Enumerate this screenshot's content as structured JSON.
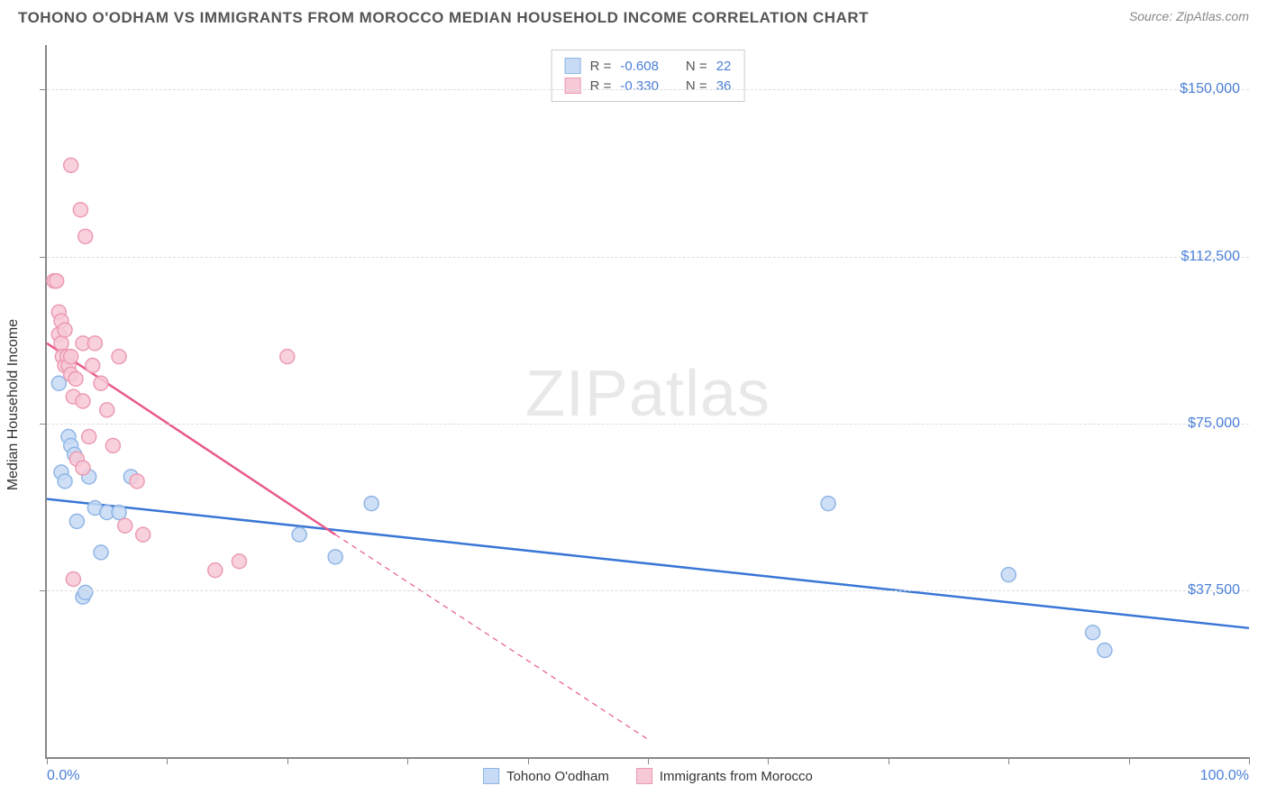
{
  "title": "TOHONO O'ODHAM VS IMMIGRANTS FROM MOROCCO MEDIAN HOUSEHOLD INCOME CORRELATION CHART",
  "source": "Source: ZipAtlas.com",
  "watermark_a": "ZIP",
  "watermark_b": "atlas",
  "y_axis_label": "Median Household Income",
  "x_min_label": "0.0%",
  "x_max_label": "100.0%",
  "chart": {
    "type": "scatter",
    "xlim": [
      0,
      100
    ],
    "ylim": [
      0,
      160000
    ],
    "y_ticks": [
      37500,
      75000,
      112500,
      150000
    ],
    "y_tick_labels": [
      "$37,500",
      "$75,000",
      "$112,500",
      "$150,000"
    ],
    "x_ticks": [
      0,
      10,
      20,
      30,
      40,
      50,
      60,
      70,
      80,
      90,
      100
    ],
    "grid_color": "#dddddd",
    "background_color": "#ffffff",
    "marker_radius": 8,
    "marker_stroke_width": 1.5,
    "line_width": 2.5
  },
  "series": [
    {
      "name": "Tohono O'odham",
      "color_fill": "#c7dbf5",
      "color_stroke": "#8fb5e5",
      "line_color": "#3a76d6",
      "R": "-0.608",
      "N": "22",
      "points": [
        [
          1.0,
          84000
        ],
        [
          1.2,
          64000
        ],
        [
          1.5,
          62000
        ],
        [
          1.8,
          72000
        ],
        [
          2.0,
          70000
        ],
        [
          2.3,
          68000
        ],
        [
          2.5,
          53000
        ],
        [
          3.0,
          36000
        ],
        [
          3.2,
          37000
        ],
        [
          3.5,
          63000
        ],
        [
          4.0,
          56000
        ],
        [
          4.5,
          46000
        ],
        [
          5.0,
          55000
        ],
        [
          6.0,
          55000
        ],
        [
          7.0,
          63000
        ],
        [
          21.0,
          50000
        ],
        [
          24.0,
          45000
        ],
        [
          27.0,
          57000
        ],
        [
          65.0,
          57000
        ],
        [
          80.0,
          41000
        ],
        [
          87.0,
          28000
        ],
        [
          88.0,
          24000
        ]
      ],
      "regression": {
        "x1": 0,
        "y1": 58000,
        "x2": 100,
        "y2": 29000,
        "dash": false,
        "extend_dash": false
      }
    },
    {
      "name": "Immigrants from Morocco",
      "color_fill": "#f7c9d6",
      "color_stroke": "#ec9ab2",
      "line_color": "#e85a8a",
      "R": "-0.330",
      "N": "36",
      "points": [
        [
          0.6,
          107000
        ],
        [
          0.8,
          107000
        ],
        [
          1.0,
          100000
        ],
        [
          1.0,
          95000
        ],
        [
          1.2,
          98000
        ],
        [
          1.2,
          93000
        ],
        [
          1.3,
          90000
        ],
        [
          1.5,
          96000
        ],
        [
          1.5,
          88000
        ],
        [
          1.7,
          90000
        ],
        [
          1.8,
          88000
        ],
        [
          2.0,
          86000
        ],
        [
          2.0,
          90000
        ],
        [
          2.0,
          133000
        ],
        [
          2.2,
          81000
        ],
        [
          2.2,
          40000
        ],
        [
          2.4,
          85000
        ],
        [
          2.5,
          67000
        ],
        [
          2.8,
          123000
        ],
        [
          3.0,
          93000
        ],
        [
          3.0,
          80000
        ],
        [
          3.0,
          65000
        ],
        [
          3.2,
          117000
        ],
        [
          3.5,
          72000
        ],
        [
          3.8,
          88000
        ],
        [
          4.0,
          93000
        ],
        [
          4.5,
          84000
        ],
        [
          5.0,
          78000
        ],
        [
          5.5,
          70000
        ],
        [
          6.0,
          90000
        ],
        [
          6.5,
          52000
        ],
        [
          7.5,
          62000
        ],
        [
          8.0,
          50000
        ],
        [
          14.0,
          42000
        ],
        [
          16.0,
          44000
        ],
        [
          20.0,
          90000
        ]
      ],
      "regression": {
        "x1": 0,
        "y1": 93000,
        "x2": 24,
        "y2": 50000,
        "dash": false,
        "extend_dash": true,
        "dash_x2": 50,
        "dash_y2": 4000
      }
    }
  ],
  "stats_box": {
    "r_label": "R =",
    "n_label": "N ="
  },
  "legend": {
    "series1": "Tohono O'odham",
    "series2": "Immigrants from Morocco"
  }
}
